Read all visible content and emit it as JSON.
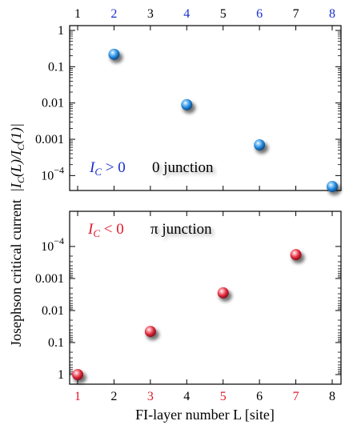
{
  "chart_data": [
    {
      "type": "scatter",
      "panel": "top",
      "xscale": "linear",
      "yscale": "log",
      "xlim": [
        1,
        8
      ],
      "ylim": [
        5e-05,
        1
      ],
      "x_tick_labels": [
        "1",
        "2",
        "3",
        "4",
        "5",
        "6",
        "7",
        "8"
      ],
      "x_tick_colors": [
        "#000000",
        "#1a2fd0",
        "#000000",
        "#1a2fd0",
        "#000000",
        "#1a2fd0",
        "#000000",
        "#1a2fd0"
      ],
      "y_ticks": [
        1,
        0.1,
        0.01,
        0.001,
        0.0001
      ],
      "y_tick_labels": [
        "1",
        "0.1",
        "0.01",
        "0.001",
        "10^-4"
      ],
      "series": [
        {
          "color": "#2a8fe0",
          "x": [
            2,
            4,
            6,
            8
          ],
          "y": [
            0.22,
            0.009,
            0.0007,
            5e-05
          ]
        }
      ],
      "annotations": [
        {
          "text_math": "I_C > 0",
          "color": "#1a2fd0"
        },
        {
          "text": "0 junction",
          "color": "#000000"
        }
      ]
    },
    {
      "type": "scatter",
      "panel": "bottom",
      "xscale": "linear",
      "yscale": "log",
      "yaxis_inverted": true,
      "xlim": [
        1,
        8
      ],
      "ylim": [
        1,
        3e-05
      ],
      "x_tick_labels": [
        "1",
        "2",
        "3",
        "4",
        "5",
        "6",
        "7",
        "8"
      ],
      "x_tick_colors": [
        "#e0182a",
        "#000000",
        "#e0182a",
        "#000000",
        "#e0182a",
        "#000000",
        "#e0182a",
        "#000000"
      ],
      "y_ticks": [
        0.0001,
        0.001,
        0.01,
        0.1,
        1
      ],
      "y_tick_labels": [
        "10^-4",
        "0.001",
        "0.01",
        "0.1",
        "1"
      ],
      "series": [
        {
          "color": "#e0283a",
          "x": [
            1,
            3,
            5,
            7
          ],
          "y": [
            1,
            0.045,
            0.0028,
            0.00018
          ]
        }
      ],
      "annotations": [
        {
          "text_math": "I_C < 0",
          "color": "#e0182a"
        },
        {
          "text": "π junction",
          "color": "#000000"
        }
      ]
    }
  ],
  "xlabel": "FI-layer number L [site]",
  "ylabel_text": "Josephson critical current",
  "ylabel_math": "|I_C(L)/I_C(1)|"
}
